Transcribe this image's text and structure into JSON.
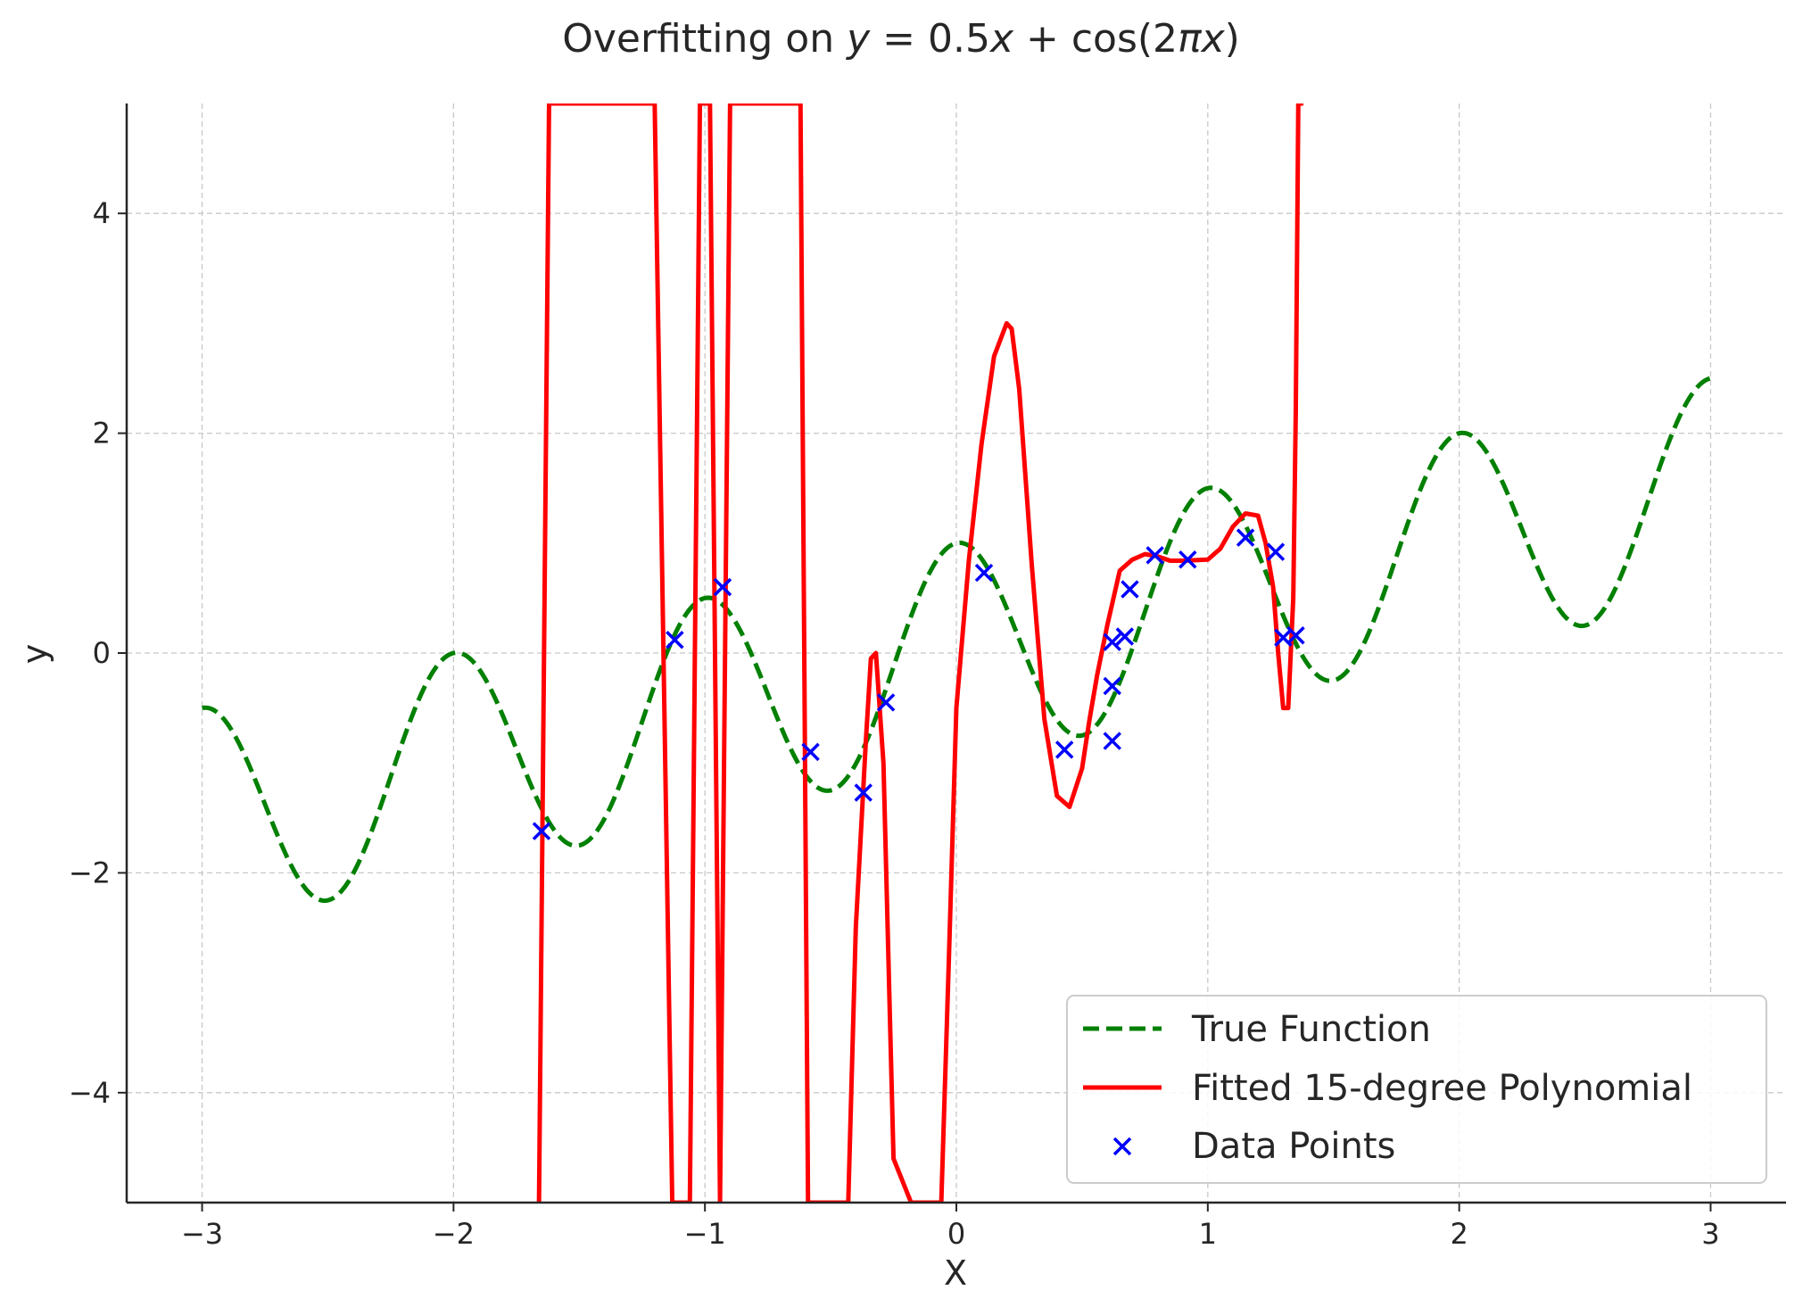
{
  "chart_data": {
    "type": "line",
    "title": {
      "prefix": "Overfitting on ",
      "y": "y",
      "eq": " = 0.5",
      "x1": "x",
      "mid": " + cos(2",
      "pi": "π",
      "x2": "x",
      "end": ")"
    },
    "xlabel": "X",
    "ylabel": "y",
    "xlim": [
      -3.3,
      3.3
    ],
    "ylim": [
      -5,
      5
    ],
    "grid": true,
    "legend_position": "bottom-right",
    "x_ticks": [
      {
        "value": -3,
        "label": "−3"
      },
      {
        "value": -2,
        "label": "−2"
      },
      {
        "value": -1,
        "label": "−1"
      },
      {
        "value": 0,
        "label": "0"
      },
      {
        "value": 1,
        "label": "1"
      },
      {
        "value": 2,
        "label": "2"
      },
      {
        "value": 3,
        "label": "3"
      }
    ],
    "y_ticks": [
      {
        "value": -4,
        "label": "−4"
      },
      {
        "value": -2,
        "label": "−2"
      },
      {
        "value": 0,
        "label": "0"
      },
      {
        "value": 2,
        "label": "2"
      },
      {
        "value": 4,
        "label": "4"
      }
    ],
    "colors": {
      "true_function": "#008000",
      "fitted": "#ff0000",
      "points": "#0000ff",
      "grid": "#c8c8c8",
      "axis": "#262626"
    },
    "series": [
      {
        "name": "True Function",
        "style": "dashed",
        "formula": "0.5x + cos(2πx)",
        "x_range": [
          -3,
          3
        ]
      },
      {
        "name": "Fitted 15-degree Polynomial",
        "style": "solid",
        "x": [
          -1.66,
          -1.62,
          -1.4,
          -1.2,
          -1.13,
          -1.06,
          -1.02,
          -0.98,
          -0.94,
          -0.9,
          -0.8,
          -0.7,
          -0.62,
          -0.59,
          -0.55,
          -0.43,
          -0.4,
          -0.36,
          -0.34,
          -0.32,
          -0.29,
          -0.25,
          -0.18,
          -0.14,
          -0.1,
          -0.06,
          -0.03,
          0.0,
          0.05,
          0.1,
          0.15,
          0.2,
          0.22,
          0.25,
          0.3,
          0.35,
          0.4,
          0.45,
          0.5,
          0.53,
          0.56,
          0.6,
          0.65,
          0.7,
          0.75,
          0.8,
          0.85,
          0.9,
          1.0,
          1.05,
          1.1,
          1.15,
          1.2,
          1.23,
          1.26,
          1.28,
          1.3,
          1.32,
          1.34,
          1.35,
          1.36,
          1.38
        ],
        "y": [
          -5,
          5,
          5,
          5,
          -5,
          -5,
          5,
          5,
          -5,
          5,
          5,
          5,
          5,
          -5,
          -5,
          -5,
          -2.5,
          -0.8,
          -0.05,
          0.0,
          -1.0,
          -4.6,
          -5,
          -5,
          -5,
          -5,
          -2.8,
          -0.5,
          0.85,
          1.9,
          2.7,
          3.0,
          2.95,
          2.4,
          0.8,
          -0.6,
          -1.3,
          -1.4,
          -1.05,
          -0.6,
          -0.2,
          0.25,
          0.75,
          0.85,
          0.9,
          0.88,
          0.84,
          0.84,
          0.85,
          0.95,
          1.15,
          1.27,
          1.25,
          1.0,
          0.6,
          0.0,
          -0.5,
          -0.5,
          0.5,
          2.2,
          5,
          5
        ]
      },
      {
        "name": "Data Points",
        "style": "marker-x",
        "x": [
          -1.65,
          -1.12,
          -0.93,
          -0.58,
          -0.37,
          -0.28,
          0.11,
          0.43,
          0.62,
          0.62,
          0.62,
          0.67,
          0.69,
          0.79,
          0.92,
          1.15,
          1.27,
          1.3,
          1.35
        ],
        "y": [
          -1.62,
          0.12,
          0.6,
          -0.9,
          -1.27,
          -0.45,
          0.73,
          -0.88,
          -0.8,
          -0.3,
          0.1,
          0.15,
          0.58,
          0.89,
          0.85,
          1.05,
          0.92,
          0.14,
          0.16
        ]
      }
    ]
  }
}
